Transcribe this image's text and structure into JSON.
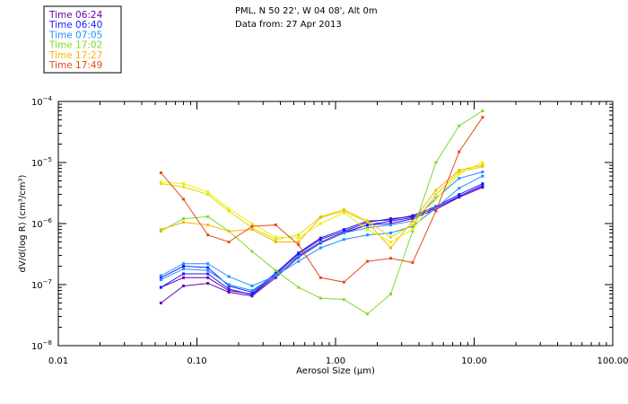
{
  "header": {
    "location": "PML, N 50 22', W 04 08', Alt 0m",
    "date_line": "Data from: 27 Apr 2013"
  },
  "chart_data": {
    "type": "line",
    "title": "PML, N 50 22', W 04 08', Alt 0m",
    "subtitle": "Data from: 27 Apr 2013",
    "xlabel": "Aerosol Size (µm)",
    "ylabel": "dV/d(log R) (cm³/cm³)",
    "xscale": "log",
    "yscale": "log",
    "xlim": [
      0.01,
      100
    ],
    "ylim": [
      1e-08,
      0.0001
    ],
    "x_ticks": [
      {
        "value": 0.01,
        "label": "0.01"
      },
      {
        "value": 0.1,
        "label": "0.10"
      },
      {
        "value": 1,
        "label": "1.00"
      },
      {
        "value": 10,
        "label": "10.00"
      },
      {
        "value": 100,
        "label": "100.00"
      }
    ],
    "y_ticks": [
      {
        "value": 1e-08,
        "mantissa": "10",
        "exponent": "−8"
      },
      {
        "value": 1e-07,
        "mantissa": "10",
        "exponent": "−7"
      },
      {
        "value": 1e-06,
        "mantissa": "10",
        "exponent": "−6"
      },
      {
        "value": 1e-05,
        "mantissa": "10",
        "exponent": "−5"
      },
      {
        "value": 0.0001,
        "mantissa": "10",
        "exponent": "−4"
      }
    ],
    "legend_position": "top-left",
    "x": [
      0.055,
      0.08,
      0.12,
      0.17,
      0.25,
      0.37,
      0.54,
      0.78,
      1.15,
      1.7,
      2.5,
      3.6,
      5.3,
      7.8,
      11.5
    ],
    "series": [
      {
        "name": "Time 06:24",
        "color": "#6a00a8",
        "values": [
          5e-08,
          9.5e-08,
          1.05e-07,
          7.5e-08,
          6.5e-08,
          1.3e-07,
          2.8e-07,
          4.8e-07,
          7e-07,
          9.5e-07,
          1e-06,
          1.2e-06,
          1.7e-06,
          2.7e-06,
          3.9e-06
        ]
      },
      {
        "name": "Time 06:24",
        "color": "#6a00a8",
        "values": [
          9e-08,
          1.3e-07,
          1.3e-07,
          8e-08,
          7e-08,
          1.5e-07,
          3.2e-07,
          5.5e-07,
          7.5e-07,
          1.05e-06,
          1.2e-06,
          1.3e-06,
          1.8e-06,
          2.8e-06,
          4.1e-06
        ]
      },
      {
        "name": "Time 06:40",
        "color": "#1a1aff",
        "values": [
          9e-08,
          1.5e-07,
          1.5e-07,
          8.5e-08,
          6.8e-08,
          1.4e-07,
          3e-07,
          5e-07,
          7.2e-07,
          9.5e-07,
          1.1e-06,
          1.25e-06,
          1.8e-06,
          2.8e-06,
          4.2e-06
        ]
      },
      {
        "name": "Time 06:40",
        "color": "#1a1aff",
        "values": [
          1.3e-07,
          2e-07,
          1.9e-07,
          9.5e-08,
          7.5e-08,
          1.55e-07,
          3.3e-07,
          5.8e-07,
          8e-07,
          1.1e-06,
          1.15e-06,
          1.35e-06,
          1.9e-06,
          3e-06,
          4.5e-06
        ]
      },
      {
        "name": "Time 07:05",
        "color": "#1e90ff",
        "values": [
          1.4e-07,
          2.2e-07,
          2.2e-07,
          1.35e-07,
          9.5e-08,
          1.4e-07,
          2.4e-07,
          4e-07,
          5.5e-07,
          6.5e-07,
          7e-07,
          9e-07,
          1.8e-06,
          3.8e-06,
          6e-06
        ]
      },
      {
        "name": "Time 07:05",
        "color": "#1e90ff",
        "values": [
          1.2e-07,
          1.8e-07,
          1.7e-07,
          1e-07,
          8e-08,
          1.45e-07,
          2.9e-07,
          5e-07,
          7e-07,
          8.5e-07,
          9.5e-07,
          1.1e-06,
          2.6e-06,
          5.5e-06,
          7e-06
        ]
      },
      {
        "name": "Time 17:02",
        "color": "#7cdc2a",
        "values": [
          7.5e-07,
          1.2e-06,
          1.3e-06,
          7.5e-07,
          3.5e-07,
          1.7e-07,
          9e-08,
          6e-08,
          5.7e-08,
          3.3e-08,
          7e-08,
          7.5e-07,
          1e-05,
          4e-05,
          7e-05
        ]
      },
      {
        "name": "Time 17:02",
        "color": "#dddd00",
        "values": [
          4.5e-06,
          4e-06,
          3e-06,
          1.6e-06,
          8.5e-07,
          5.5e-07,
          6.5e-07,
          1.3e-06,
          1.7e-06,
          1.1e-06,
          6e-07,
          9.5e-07,
          3e-06,
          7e-06,
          8.5e-06
        ]
      },
      {
        "name": "Time 17:27",
        "color": "#f5b800",
        "values": [
          8e-07,
          1.05e-06,
          9.5e-07,
          7.5e-07,
          8e-07,
          5e-07,
          5e-07,
          1.25e-06,
          1.6e-06,
          1.05e-06,
          4e-07,
          1.1e-06,
          3.5e-06,
          7.5e-06,
          9e-06
        ]
      },
      {
        "name": "Time 17:27",
        "color": "#eeee00",
        "values": [
          4.8e-06,
          4.5e-06,
          3.3e-06,
          1.75e-06,
          1e-06,
          6e-07,
          5.8e-07,
          1e-06,
          1.5e-06,
          8e-07,
          5e-07,
          8e-07,
          2.5e-06,
          6.5e-06,
          1e-05
        ]
      },
      {
        "name": "Time 17:49",
        "color": "#e84a1a",
        "values": [
          6.8e-06,
          2.5e-06,
          6.5e-07,
          5e-07,
          9e-07,
          9.5e-07,
          4.5e-07,
          1.3e-07,
          1.1e-07,
          2.4e-07,
          2.7e-07,
          2.3e-07,
          1.6e-06,
          1.5e-05,
          5.5e-05
        ]
      }
    ],
    "legend": [
      {
        "label": "Time 06:24",
        "color": "#6a00a8"
      },
      {
        "label": "Time 06:40",
        "color": "#1a1aff"
      },
      {
        "label": "Time 07:05",
        "color": "#1e90ff"
      },
      {
        "label": "Time 17:02",
        "color": "#7cdc2a"
      },
      {
        "label": "Time 17:27",
        "color": "#f5b800"
      },
      {
        "label": "Time 17:49",
        "color": "#e84a1a"
      }
    ]
  }
}
